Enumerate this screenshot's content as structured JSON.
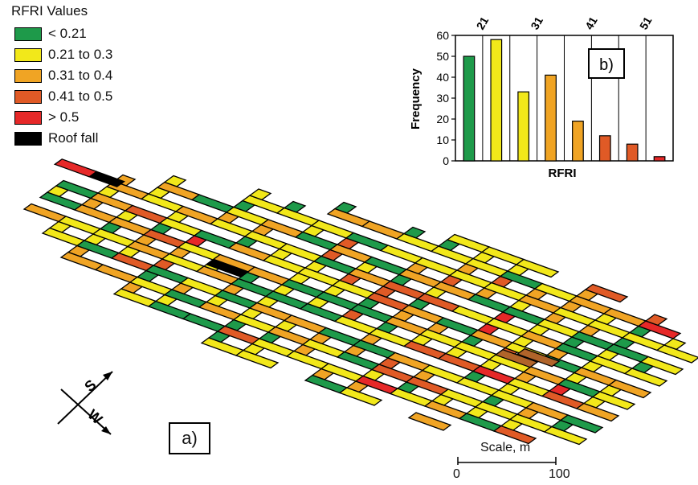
{
  "legend": {
    "title": "RFRI Values",
    "items": [
      {
        "label": "< 0.21",
        "color": "#1e9a4a"
      },
      {
        "label": "0.21 to 0.3",
        "color": "#f2e81a"
      },
      {
        "label": "0.31 to 0.4",
        "color": "#f0a424"
      },
      {
        "label": "0.41 to 0.5",
        "color": "#e05a26"
      },
      {
        "label": "> 0.5",
        "color": "#e62828"
      },
      {
        "label": "Roof fall",
        "color": "#000000"
      }
    ]
  },
  "map": {
    "panel_label": "a)",
    "compass": {
      "north_label": "S",
      "east_label": "W"
    },
    "scale": {
      "title": "Scale, m",
      "start": "0",
      "end": "100"
    },
    "brown_color": "#b0642a"
  },
  "chart_data": {
    "type": "bar",
    "panel_label": "b)",
    "xlabel": "RFRI",
    "ylabel": "Frequency",
    "ylim": [
      0,
      60
    ],
    "yticks": [
      "0",
      "10",
      "20",
      "30",
      "40",
      "50",
      "60"
    ],
    "top_tick_labels": [
      "21",
      "31",
      "41",
      "51"
    ],
    "values": [
      50,
      58,
      33,
      41,
      19,
      12,
      8,
      2
    ],
    "colors": [
      "#1e9a4a",
      "#f2e81a",
      "#f2e81a",
      "#f0a424",
      "#f0a424",
      "#e05a26",
      "#e05a26",
      "#e62828"
    ]
  }
}
